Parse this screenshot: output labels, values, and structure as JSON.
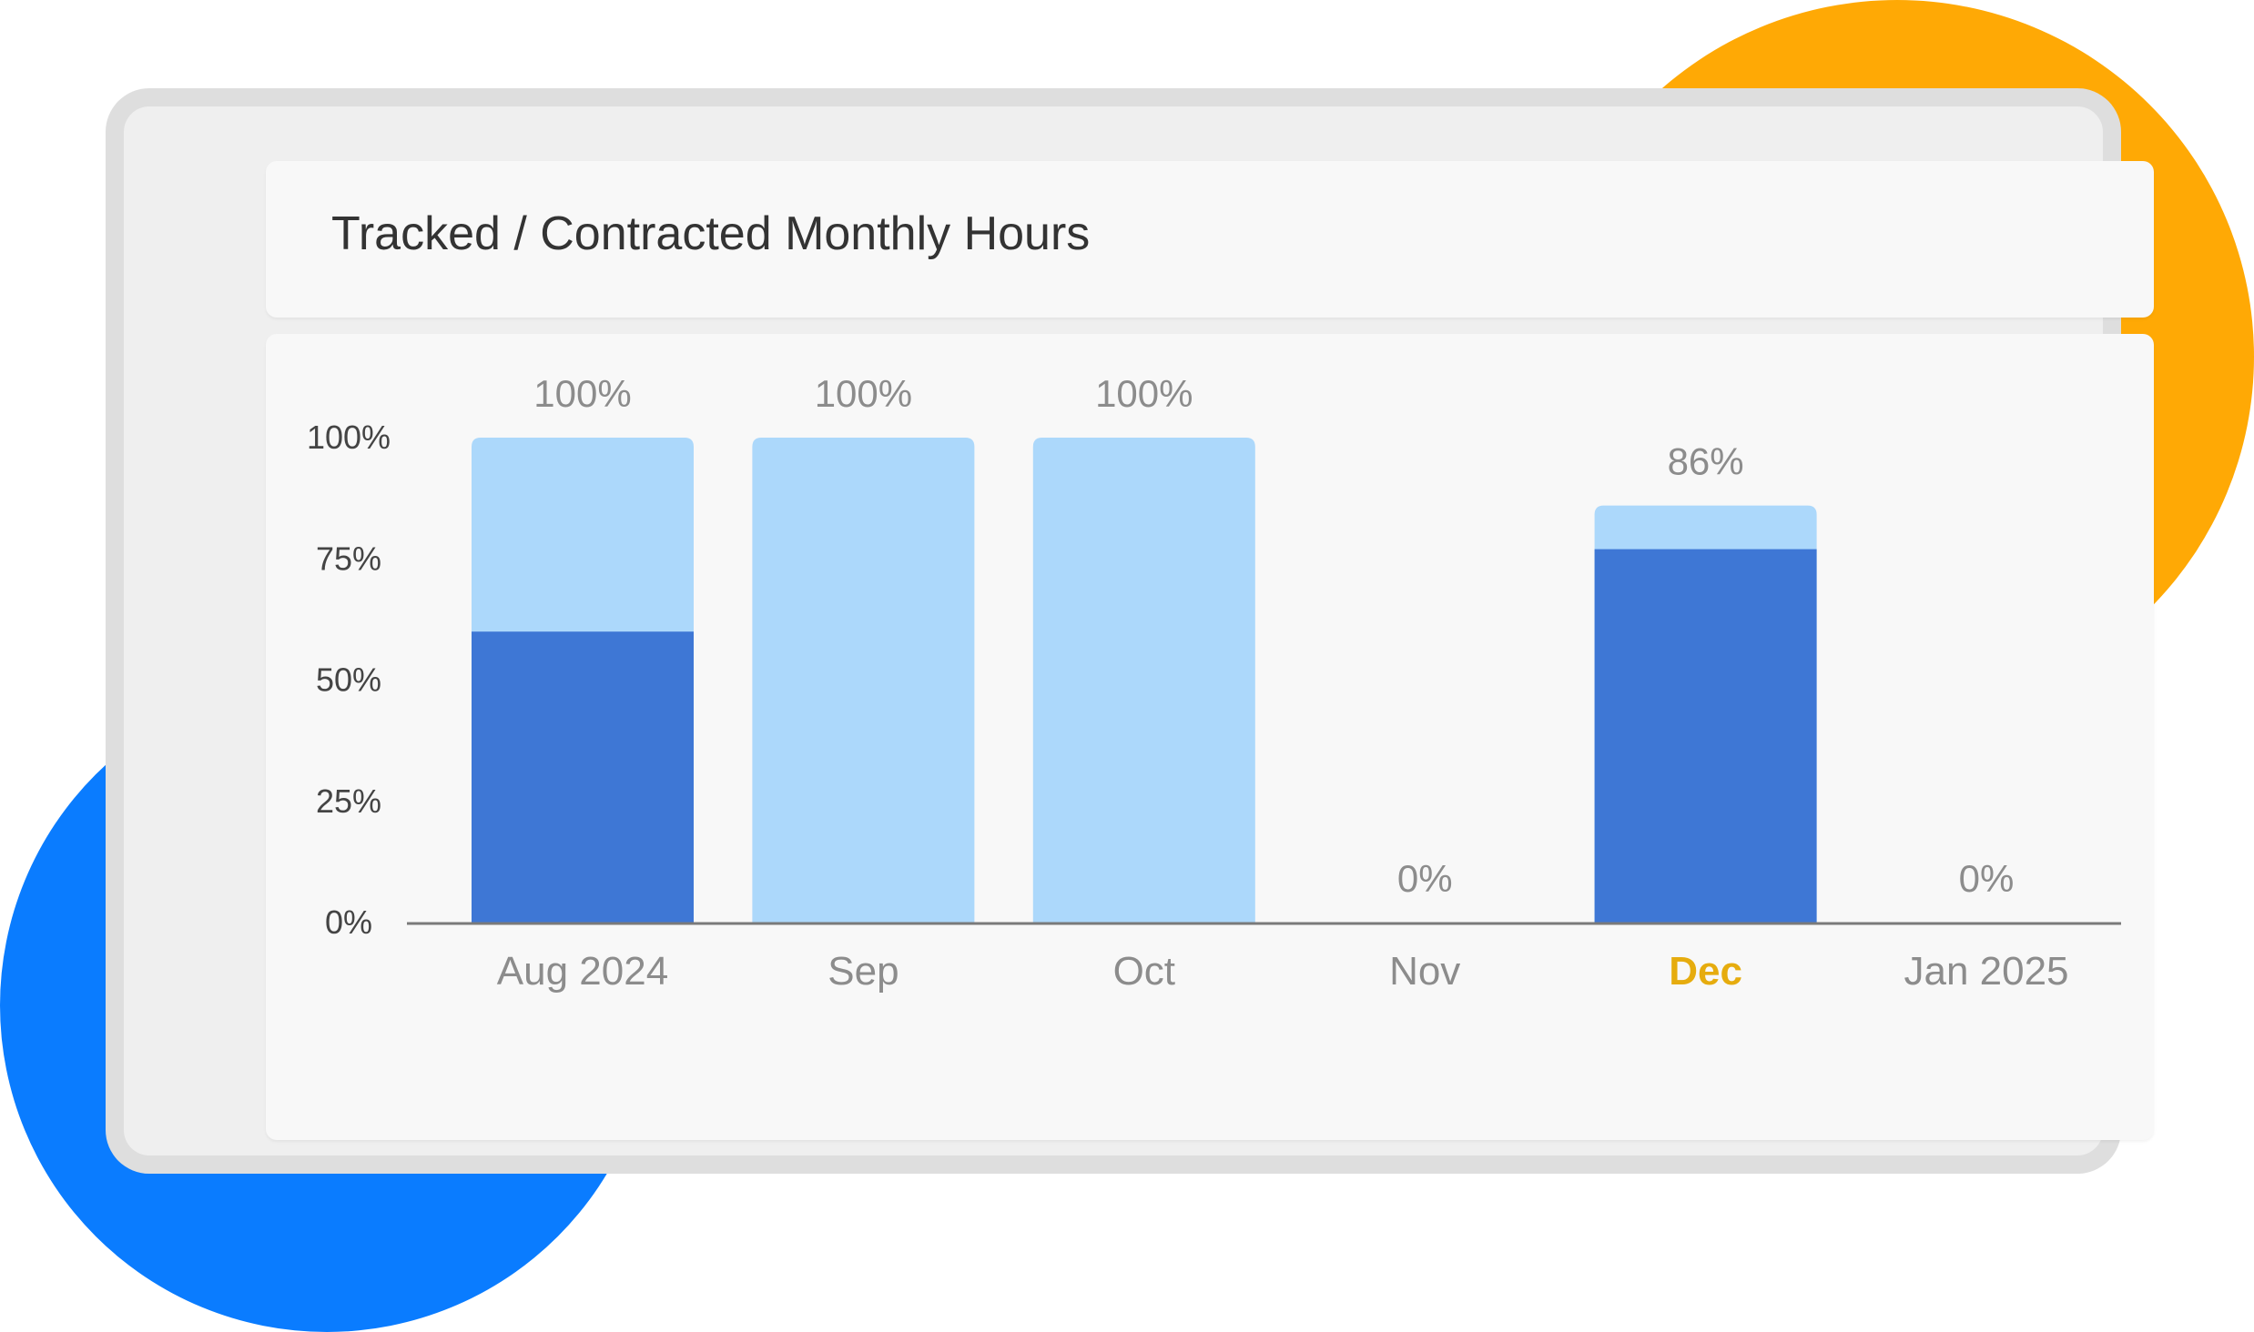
{
  "card": {
    "title": "Tracked / Contracted Monthly Hours"
  },
  "colors": {
    "contracted": "#acd8fb",
    "tracked": "#3e77d5",
    "current_month": "#e6ac0e",
    "accent_orange": "#ffa905",
    "accent_blue": "#0a7cff"
  },
  "chart_data": {
    "type": "bar",
    "stacked": "overlay",
    "title": "Tracked / Contracted Monthly Hours",
    "categories": [
      "Aug 2024",
      "Sep",
      "Oct",
      "Nov",
      "Dec",
      "Jan 2025"
    ],
    "current_category": "Dec",
    "series": [
      {
        "name": "Contracted",
        "values": [
          100,
          100,
          100,
          0,
          86,
          0
        ]
      },
      {
        "name": "Tracked",
        "values": [
          60,
          0,
          0,
          0,
          77,
          0
        ]
      }
    ],
    "data_labels": [
      "100%",
      "100%",
      "100%",
      "0%",
      "86%",
      "0%"
    ],
    "yticks": [
      "0%",
      "25%",
      "50%",
      "75%",
      "100%"
    ],
    "ylim": [
      0,
      100
    ],
    "xlabel": "",
    "ylabel": "",
    "grid": false,
    "legend": "none"
  }
}
